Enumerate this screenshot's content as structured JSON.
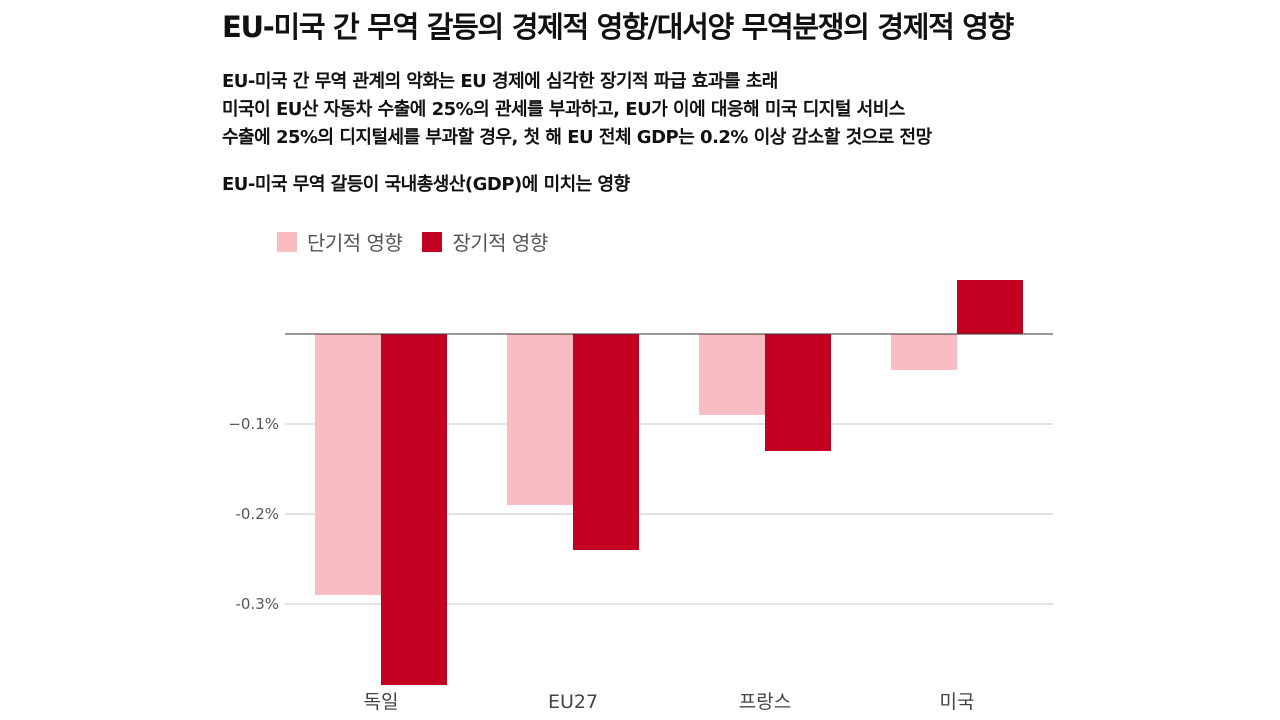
{
  "title": "EU-미국 간 무역 갈등의 경제적 영향/대서양 무역분쟁의 경제적 영향",
  "description": [
    "EU-미국 간 무역 관계의 악화는 EU 경제에 심각한 장기적 파급 효과를 초래",
    "미국이 EU산 자동차 수출에 25%의 관세를 부과하고, EU가 이에 대응해 미국 디지털 서비스",
    "수출에 25%의 디지털세를 부과할 경우, 첫 해 EU 전체 GDP는 0.2% 이상 감소할 것으로 전망"
  ],
  "chart_data": {
    "type": "bar",
    "title": "EU-미국 무역 갈등이 국내총생산(GDP)에 미치는 영향",
    "categories": [
      "독일",
      "EU27",
      "프랑스",
      "미국"
    ],
    "series": [
      {
        "name": "단기적 영향",
        "color": "#f9bcc2",
        "values": [
          -0.29,
          -0.19,
          -0.09,
          -0.04
        ]
      },
      {
        "name": "장기적 영향",
        "color": "#c30022",
        "values": [
          -0.39,
          -0.24,
          -0.13,
          0.06
        ]
      }
    ],
    "yticks": [
      {
        "value": -0.1,
        "label": "−0.1%"
      },
      {
        "value": -0.2,
        "label": "-0.2%"
      },
      {
        "value": -0.3,
        "label": "-0.3%"
      }
    ],
    "ylim": [
      -0.39,
      0.06
    ],
    "legend_position": "top-left",
    "grid": true
  }
}
